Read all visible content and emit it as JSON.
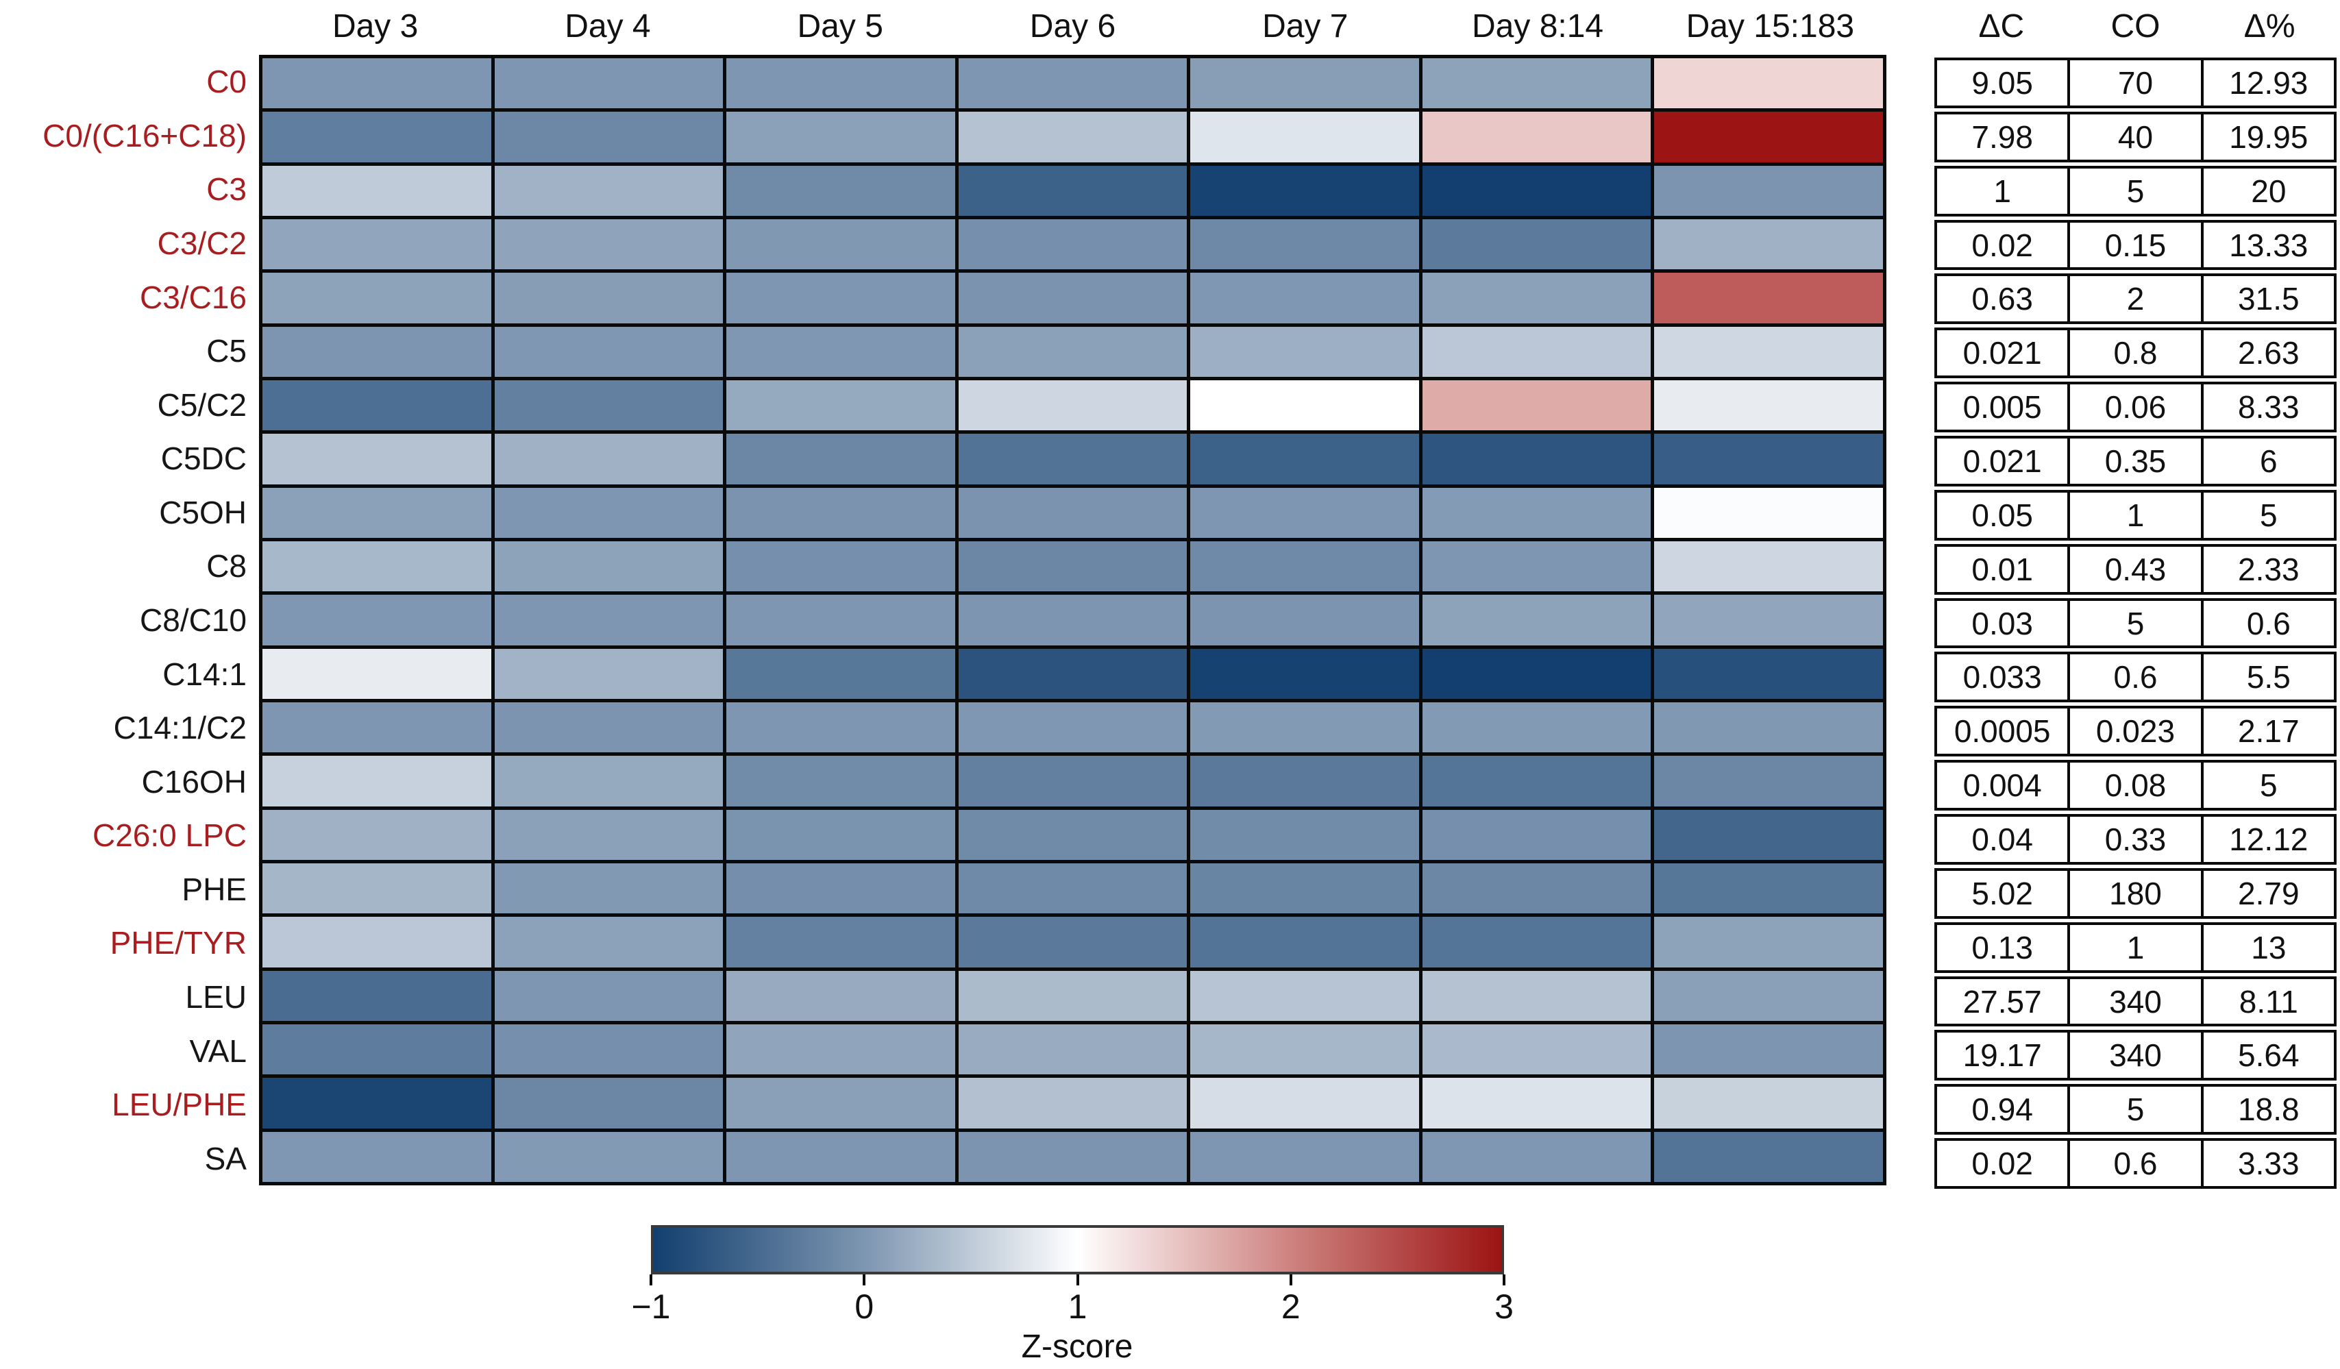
{
  "figure": {
    "label_red": "#A81D1F",
    "label_black": "#161616",
    "grid_color": "#0a0a0a"
  },
  "chart_data": {
    "type": "heatmap",
    "columns": [
      "Day 3",
      "Day 4",
      "Day 5",
      "Day 6",
      "Day 7",
      "Day 8:14",
      "Day 15:183"
    ],
    "table_headers": [
      "ΔC",
      "CO",
      "Δ%"
    ],
    "zlim": [
      -1,
      3
    ],
    "colormap_anchors": [
      {
        "z": -1,
        "color": "#123F6F"
      },
      {
        "z": 0,
        "color": "#7E96B1"
      },
      {
        "z": 1,
        "color": "#FFFFFF"
      },
      {
        "z": 2,
        "color": "#CE8380"
      },
      {
        "z": 3,
        "color": "#9C1414"
      }
    ],
    "legend": {
      "label": "Z-score",
      "ticks": [
        "−1",
        "0",
        "1",
        "2",
        "3"
      ],
      "tick_values": [
        -1,
        0,
        1,
        2,
        3
      ],
      "position": "bottom"
    },
    "rows": [
      {
        "label": "C0",
        "label_color": "red",
        "z": [
          0,
          0,
          0,
          0,
          0.08,
          0.12,
          1.33
        ],
        "dC": "9.05",
        "CO": "70",
        "dPct": "12.93"
      },
      {
        "label": "C0/(C16+C18)",
        "label_color": "red",
        "z": [
          -0.28,
          -0.16,
          0.1,
          0.42,
          0.75,
          1.45,
          3
        ],
        "dC": "7.98",
        "CO": "40",
        "dPct": "19.95"
      },
      {
        "label": "C3",
        "label_color": "red",
        "z": [
          0.5,
          0.27,
          -0.13,
          -0.6,
          -0.95,
          -1,
          -0.02
        ],
        "dC": "1",
        "CO": "5",
        "dPct": "20"
      },
      {
        "label": "C3/C2",
        "label_color": "red",
        "z": [
          0.15,
          0.13,
          0.02,
          -0.08,
          -0.15,
          -0.32,
          0.26
        ],
        "dC": "0.02",
        "CO": "0.15",
        "dPct": "13.33"
      },
      {
        "label": "C3/C16",
        "label_color": "red",
        "z": [
          0.12,
          0.07,
          0,
          -0.03,
          0.01,
          0.1,
          2.35
        ],
        "dC": "0.63",
        "CO": "2",
        "dPct": "31.5"
      },
      {
        "label": "C5",
        "label_color": "black",
        "z": [
          -0.01,
          0.01,
          0.01,
          0.1,
          0.24,
          0.47,
          0.63
        ],
        "dC": "0.021",
        "CO": "0.8",
        "dPct": "2.63"
      },
      {
        "label": "C5/C2",
        "label_color": "black",
        "z": [
          -0.45,
          -0.25,
          0.18,
          0.62,
          1.0,
          1.68,
          0.82
        ],
        "dC": "0.005",
        "CO": "0.06",
        "dPct": "8.33"
      },
      {
        "label": "C5DC",
        "label_color": "black",
        "z": [
          0.42,
          0.26,
          -0.17,
          -0.41,
          -0.6,
          -0.75,
          -0.65
        ],
        "dC": "0.021",
        "CO": "0.35",
        "dPct": "6"
      },
      {
        "label": "C5OH",
        "label_color": "black",
        "z": [
          0.1,
          0,
          -0.03,
          -0.03,
          0,
          0.05,
          0.97
        ],
        "dC": "0.05",
        "CO": "1",
        "dPct": "5"
      },
      {
        "label": "C8",
        "label_color": "black",
        "z": [
          0.32,
          0.12,
          -0.08,
          -0.17,
          -0.14,
          0,
          0.62
        ],
        "dC": "0.01",
        "CO": "0.43",
        "dPct": "2.33"
      },
      {
        "label": "C8/C10",
        "label_color": "black",
        "z": [
          0.01,
          0,
          0,
          -0.01,
          -0.02,
          0.12,
          0.15
        ],
        "dC": "0.03",
        "CO": "5",
        "dPct": "0.6"
      },
      {
        "label": "C14:1",
        "label_color": "black",
        "z": [
          0.82,
          0.28,
          -0.35,
          -0.77,
          -0.97,
          -1,
          -0.8
        ],
        "dC": "0.033",
        "CO": "0.6",
        "dPct": "5.5"
      },
      {
        "label": "C14:1/C2",
        "label_color": "black",
        "z": [
          0,
          -0.02,
          0,
          0.01,
          0.04,
          0.04,
          0.02
        ],
        "dC": "0.0005",
        "CO": "0.023",
        "dPct": "2.17"
      },
      {
        "label": "C16OH",
        "label_color": "black",
        "z": [
          0.56,
          0.18,
          -0.12,
          -0.25,
          -0.33,
          -0.38,
          -0.17
        ],
        "dC": "0.004",
        "CO": "0.08",
        "dPct": "5"
      },
      {
        "label": "C26:0 LPC",
        "label_color": "red",
        "z": [
          0.26,
          0.1,
          -0.04,
          -0.13,
          -0.12,
          -0.08,
          -0.55
        ],
        "dC": "0.04",
        "CO": "0.33",
        "dPct": "12.12"
      },
      {
        "label": "PHE",
        "label_color": "black",
        "z": [
          0.3,
          0.03,
          -0.09,
          -0.14,
          -0.19,
          -0.17,
          -0.36
        ],
        "dC": "5.02",
        "CO": "180",
        "dPct": "2.79"
      },
      {
        "label": "PHE/TYR",
        "label_color": "red",
        "z": [
          0.47,
          0.11,
          -0.24,
          -0.33,
          -0.4,
          -0.38,
          0.12
        ],
        "dC": "0.13",
        "CO": "1",
        "dPct": "13"
      },
      {
        "label": "LEU",
        "label_color": "black",
        "z": [
          -0.48,
          0,
          0.19,
          0.35,
          0.44,
          0.42,
          0.09
        ],
        "dC": "27.57",
        "CO": "340",
        "dPct": "8.11"
      },
      {
        "label": "VAL",
        "label_color": "black",
        "z": [
          -0.3,
          -0.08,
          0.14,
          0.2,
          0.31,
          0.34,
          -0.01
        ],
        "dC": "19.17",
        "CO": "340",
        "dPct": "5.64"
      },
      {
        "label": "LEU/PHE",
        "label_color": "red",
        "z": [
          -0.92,
          -0.17,
          0.09,
          0.4,
          0.68,
          0.73,
          0.57
        ],
        "dC": "0.94",
        "CO": "5",
        "dPct": "18.8"
      },
      {
        "label": "SA",
        "label_color": "black",
        "z": [
          0.01,
          0.04,
          0,
          -0.02,
          0,
          0.01,
          -0.39
        ],
        "dC": "0.02",
        "CO": "0.6",
        "dPct": "3.33"
      }
    ]
  }
}
